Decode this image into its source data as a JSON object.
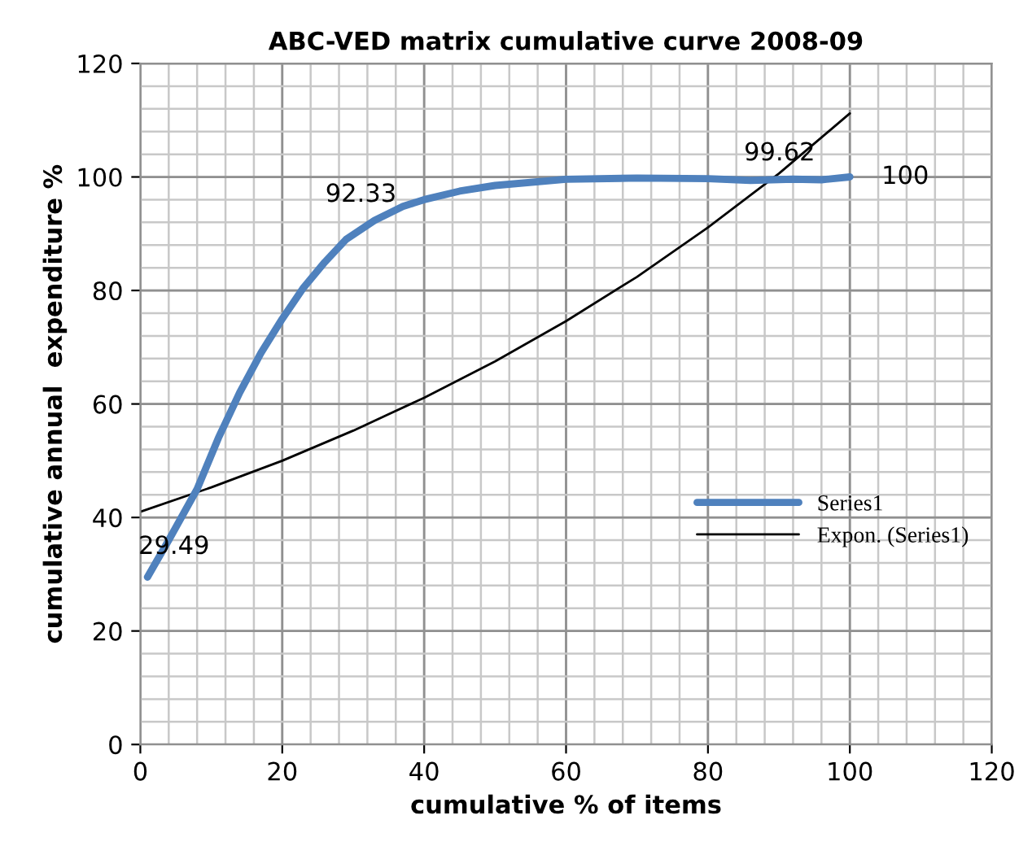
{
  "chart_data": {
    "type": "line",
    "title": "ABC-VED matrix cumulative curve 2008-09",
    "xlabel": "cumulative % of items",
    "ylabel": "cumulative annual  expenditure %",
    "xlim": [
      0,
      120
    ],
    "ylim": [
      0,
      120
    ],
    "xticks": [
      0,
      20,
      40,
      60,
      80,
      100,
      120
    ],
    "yticks": [
      0,
      20,
      40,
      60,
      80,
      100,
      120
    ],
    "grid": true,
    "legend": "right",
    "series": [
      {
        "name": "Series1",
        "color": "#4f81bd",
        "x": [
          1,
          4,
          8,
          11,
          14,
          17,
          20,
          23,
          26,
          29,
          33,
          37,
          40,
          45,
          50,
          60,
          70,
          80,
          86,
          92,
          96,
          100
        ],
        "values": [
          29.49,
          36,
          45,
          54,
          62,
          69,
          75,
          80.5,
          85,
          89,
          92.33,
          94.8,
          96,
          97.5,
          98.5,
          99.6,
          99.8,
          99.7,
          99.4,
          99.62,
          99.5,
          100
        ],
        "value_labels": [
          "29.49",
          null,
          null,
          null,
          null,
          null,
          null,
          null,
          null,
          null,
          "92.33",
          null,
          null,
          null,
          null,
          null,
          null,
          null,
          null,
          "99.62",
          null,
          "100"
        ]
      },
      {
        "name": "Expon. (Series1)",
        "color": "#000000",
        "x": [
          0,
          10,
          20,
          30,
          40,
          50,
          60,
          70,
          80,
          90,
          100
        ],
        "values": [
          41,
          45.3,
          50,
          55.3,
          61.1,
          67.5,
          74.6,
          82.4,
          91.1,
          100.6,
          111.2
        ]
      }
    ]
  }
}
